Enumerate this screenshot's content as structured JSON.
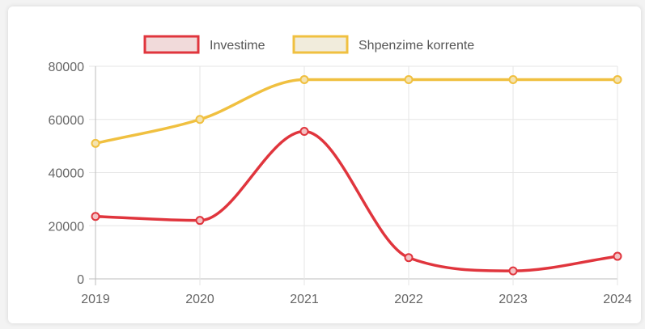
{
  "chart_data": {
    "type": "line",
    "x": [
      "2019",
      "2020",
      "2021",
      "2022",
      "2023",
      "2024"
    ],
    "series": [
      {
        "name": "Investime",
        "values": [
          23500,
          22000,
          55500,
          8000,
          3000,
          8500
        ],
        "color": "#e0353d"
      },
      {
        "name": "Shpenzime korrente",
        "values": [
          51000,
          60000,
          75000,
          75000,
          75000,
          75000
        ],
        "color": "#f0c040"
      }
    ],
    "y_ticks": [
      "0",
      "20000",
      "40000",
      "60000",
      "80000"
    ],
    "ylim": [
      0,
      80000
    ],
    "grid": true,
    "legend_position": "top-center",
    "smooth": true
  }
}
